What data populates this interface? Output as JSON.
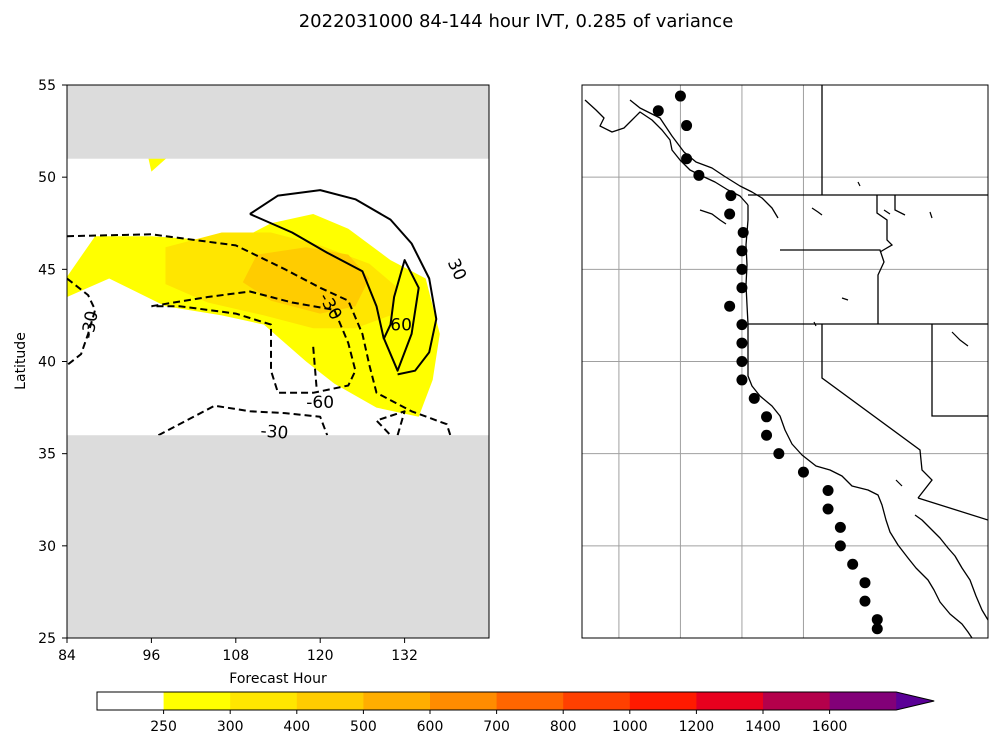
{
  "title": "2022031000 84-144 hour IVT, 0.285 of variance",
  "chart_data": [
    {
      "type": "contour",
      "xlabel": "Forecast Hour",
      "ylabel": "Latitude",
      "xlim": [
        84,
        144
      ],
      "ylim": [
        25,
        55
      ],
      "xticks": [
        "84",
        "96",
        "108",
        "120",
        "132"
      ],
      "yticks": [
        "25",
        "30",
        "35",
        "40",
        "45",
        "50",
        "55"
      ],
      "masked_regions": [
        {
          "lat_min": 51,
          "lat_max": 55
        },
        {
          "lat_min": 25,
          "lat_max": 36
        }
      ],
      "filled_levels": [
        {
          "level": 250,
          "poly": [
            [
              84,
              44.6
            ],
            [
              88,
              46.8
            ],
            [
              96,
              46.8
            ],
            [
              108,
              46.5
            ],
            [
              113,
              47.5
            ],
            [
              119,
              48.0
            ],
            [
              124,
              47.2
            ],
            [
              130,
              45.5
            ],
            [
              135,
              44.5
            ],
            [
              137,
              41.5
            ],
            [
              136,
              39
            ],
            [
              134,
              37
            ],
            [
              128,
              37.5
            ],
            [
              122,
              38.8
            ],
            [
              118,
              40
            ],
            [
              112,
              42
            ],
            [
              106,
              42.5
            ],
            [
              98,
              43
            ],
            [
              90,
              44.5
            ],
            [
              84,
              43.5
            ]
          ]
        },
        {
          "level": 250,
          "poly": [
            [
              95,
              52
            ],
            [
              101,
              52
            ],
            [
              96,
              50.3
            ]
          ]
        },
        {
          "level": 300,
          "poly": [
            [
              98,
              46.2
            ],
            [
              106,
              47.0
            ],
            [
              113,
              47.0
            ],
            [
              120,
              46.3
            ],
            [
              127,
              45.3
            ],
            [
              131,
              44.0
            ],
            [
              130,
              42.5
            ],
            [
              125,
              41.8
            ],
            [
              119,
              41.8
            ],
            [
              112,
              42.5
            ],
            [
              104,
              43.2
            ],
            [
              98,
              44.2
            ]
          ]
        },
        {
          "level": 400,
          "poly": [
            [
              109,
              44.3
            ],
            [
              111,
              45.8
            ],
            [
              118,
              46.2
            ],
            [
              124,
              45.8
            ],
            [
              127,
              44.5
            ],
            [
              125,
              43.0
            ],
            [
              120,
              42.6
            ],
            [
              113,
              43.3
            ]
          ]
        }
      ],
      "contours": [
        {
          "level": "30",
          "style": "solid",
          "points": [
            [
              110,
              48
            ],
            [
              114,
              49.0
            ],
            [
              120,
              49.3
            ],
            [
              125,
              48.8
            ],
            [
              130,
              47.7
            ],
            [
              133,
              46.4
            ],
            [
              135.5,
              44.5
            ],
            [
              136.5,
              42.3
            ],
            [
              135.5,
              40.5
            ],
            [
              133.5,
              39.5
            ],
            [
              131,
              39.3
            ]
          ]
        },
        {
          "level": "60",
          "style": "solid",
          "points": [
            [
              110,
              48
            ],
            [
              116,
              47.0
            ],
            [
              121,
              45.9
            ],
            [
              126,
              44.9
            ],
            [
              128,
              43.0
            ],
            [
              129,
              41.3
            ],
            [
              131,
              39.5
            ],
            [
              133,
              41.5
            ],
            [
              134,
              44
            ],
            [
              132,
              45.5
            ],
            [
              130.5,
              43.5
            ],
            [
              130,
              42
            ],
            [
              129,
              41.2
            ]
          ]
        },
        {
          "level": "-30",
          "style": "dashed",
          "points": [
            [
              84,
              46.8
            ],
            [
              96,
              46.9
            ],
            [
              108,
              46.3
            ],
            [
              115,
              45.0
            ],
            [
              120,
              44.0
            ],
            [
              124,
              43.3
            ],
            [
              126,
              41.5
            ],
            [
              127,
              39.8
            ],
            [
              128,
              38.3
            ],
            [
              133,
              37.3
            ],
            [
              138,
              36.6
            ],
            [
              138.5,
              36.0
            ]
          ]
        },
        {
          "level": "-30",
          "style": "dashed",
          "points": [
            [
              84,
              44.5
            ],
            [
              87,
              43.6
            ],
            [
              88,
              42.8
            ],
            [
              87,
              41.5
            ],
            [
              86,
              40.4
            ],
            [
              84,
              39.8
            ]
          ]
        },
        {
          "level": "-30",
          "style": "dashed",
          "points": [
            [
              97,
              36.0
            ],
            [
              102,
              37.0
            ],
            [
              105,
              37.6
            ],
            [
              110,
              37.3
            ],
            [
              115,
              37.2
            ],
            [
              120,
              37.0
            ],
            [
              121,
              36.0
            ]
          ]
        },
        {
          "level": "-60",
          "style": "dashed",
          "points": [
            [
              96,
              43.0
            ],
            [
              104,
              43.5
            ],
            [
              110,
              43.8
            ],
            [
              116,
              43.2
            ],
            [
              122,
              42.8
            ],
            [
              124,
              41.0
            ],
            [
              125,
              39.5
            ],
            [
              124,
              38.7
            ],
            [
              119,
              38.3
            ],
            [
              114,
              38.3
            ],
            [
              113,
              39.5
            ],
            [
              113,
              42.0
            ],
            [
              108,
              42.6
            ],
            [
              100,
              43.0
            ],
            [
              96,
              43.0
            ]
          ]
        },
        {
          "level": "-60",
          "style": "dashed",
          "points": [
            [
              119,
              40.8
            ],
            [
              119.5,
              38.5
            ]
          ]
        },
        {
          "level": "-60",
          "style": "dashed",
          "points": [
            [
              131,
              36.0
            ],
            [
              132,
              37.3
            ],
            [
              128,
              36.8
            ],
            [
              130,
              36.0
            ]
          ]
        }
      ],
      "contour_labels": [
        {
          "text": "30",
          "x": 139.5,
          "y": 45.0,
          "rot": 65
        },
        {
          "text": "60",
          "x": 131.5,
          "y": 42.0,
          "rot": 0
        },
        {
          "text": "-30",
          "x": 87.2,
          "y": 42.0,
          "rot": -80
        },
        {
          "text": "-30",
          "x": 121.5,
          "y": 43.0,
          "rot": 60
        },
        {
          "text": "-60",
          "x": 120,
          "y": 37.8,
          "rot": 0
        },
        {
          "text": "-30",
          "x": 113.5,
          "y": 36.2,
          "rot": 5
        }
      ]
    },
    {
      "type": "scatter",
      "subtype": "map",
      "lon_range": [
        -140,
        -107
      ],
      "lat_range": [
        25,
        55
      ],
      "gridlines": {
        "lon": [
          -137,
          -132,
          -127,
          -122
        ],
        "lat": [
          30,
          35,
          40,
          45,
          50,
          55
        ]
      },
      "points": [
        [
          -132.0,
          54.4
        ],
        [
          -133.8,
          53.6
        ],
        [
          -131.5,
          52.8
        ],
        [
          -131.5,
          51.0
        ],
        [
          -130.5,
          50.1
        ],
        [
          -127.9,
          49.0
        ],
        [
          -128.0,
          48.0
        ],
        [
          -126.9,
          47.0
        ],
        [
          -127.0,
          46.0
        ],
        [
          -127.0,
          45.0
        ],
        [
          -127.0,
          44.0
        ],
        [
          -128.0,
          43.0
        ],
        [
          -127.0,
          42.0
        ],
        [
          -127.0,
          41.0
        ],
        [
          -127.0,
          40.0
        ],
        [
          -127.0,
          39.0
        ],
        [
          -126.0,
          38.0
        ],
        [
          -125.0,
          37.0
        ],
        [
          -125.0,
          36.0
        ],
        [
          -124.0,
          35.0
        ],
        [
          -122.0,
          34.0
        ],
        [
          -120.0,
          33.0
        ],
        [
          -120.0,
          32.0
        ],
        [
          -119.0,
          31.0
        ],
        [
          -119.0,
          30.0
        ],
        [
          -118.0,
          29.0
        ],
        [
          -117.0,
          28.0
        ],
        [
          -117.0,
          27.0
        ],
        [
          -116.0,
          26.0
        ],
        [
          -116.0,
          25.5
        ]
      ]
    }
  ],
  "colorbar": {
    "ticks": [
      "250",
      "300",
      "400",
      "500",
      "600",
      "700",
      "800",
      "1000",
      "1200",
      "1400",
      "1600"
    ],
    "colors": [
      "#ffffff",
      "#ffff00",
      "#ffe600",
      "#ffcc00",
      "#ffae00",
      "#ff8c00",
      "#ff6600",
      "#ff4000",
      "#ff1a00",
      "#e8001e",
      "#b4004b",
      "#820078",
      "#5a0096"
    ]
  }
}
